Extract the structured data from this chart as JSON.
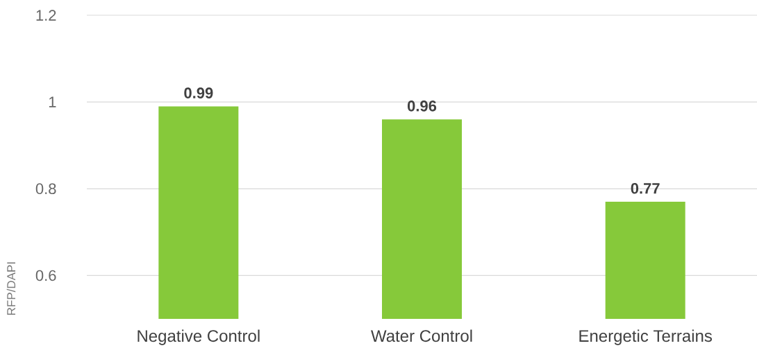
{
  "chart_data": {
    "type": "bar",
    "ylabel": "RFP/DAPI",
    "categories": [
      "Negative Control",
      "Water Control",
      "Energetic Terrains"
    ],
    "values": [
      0.99,
      0.96,
      0.77
    ],
    "value_labels": [
      "0.99",
      "0.96",
      "0.77"
    ],
    "color": "#86c93a",
    "ylim": [
      0.5,
      1.2
    ],
    "yticks": [
      0.6,
      0.8,
      1,
      1.2
    ],
    "grid": "y"
  }
}
